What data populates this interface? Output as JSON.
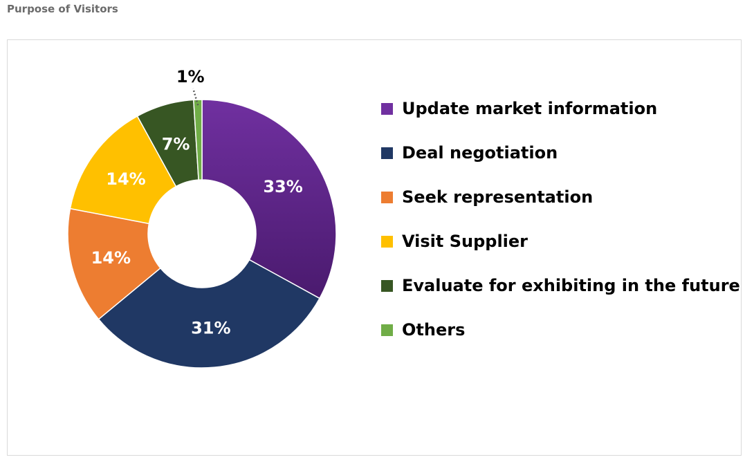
{
  "page": {
    "title": "Purpose of Visitors"
  },
  "chart_data": {
    "type": "pie",
    "style": "donut",
    "title": "",
    "legend_position": "right",
    "slices": [
      {
        "label": "Update market information",
        "value": 33,
        "display": "33%",
        "color": "#7030a0"
      },
      {
        "label": "Deal negotiation",
        "value": 31,
        "display": "31%",
        "color": "#203864"
      },
      {
        "label": "Seek representation",
        "value": 14,
        "display": "14%",
        "color": "#ed7d31"
      },
      {
        "label": "Visit Supplier",
        "value": 14,
        "display": "14%",
        "color": "#ffc000"
      },
      {
        "label": "Evaluate for exhibiting in the future",
        "value": 7,
        "display": "7%",
        "color": "#375623"
      },
      {
        "label": "Others",
        "value": 1,
        "display": "1%",
        "color": "#70ad47"
      }
    ]
  }
}
